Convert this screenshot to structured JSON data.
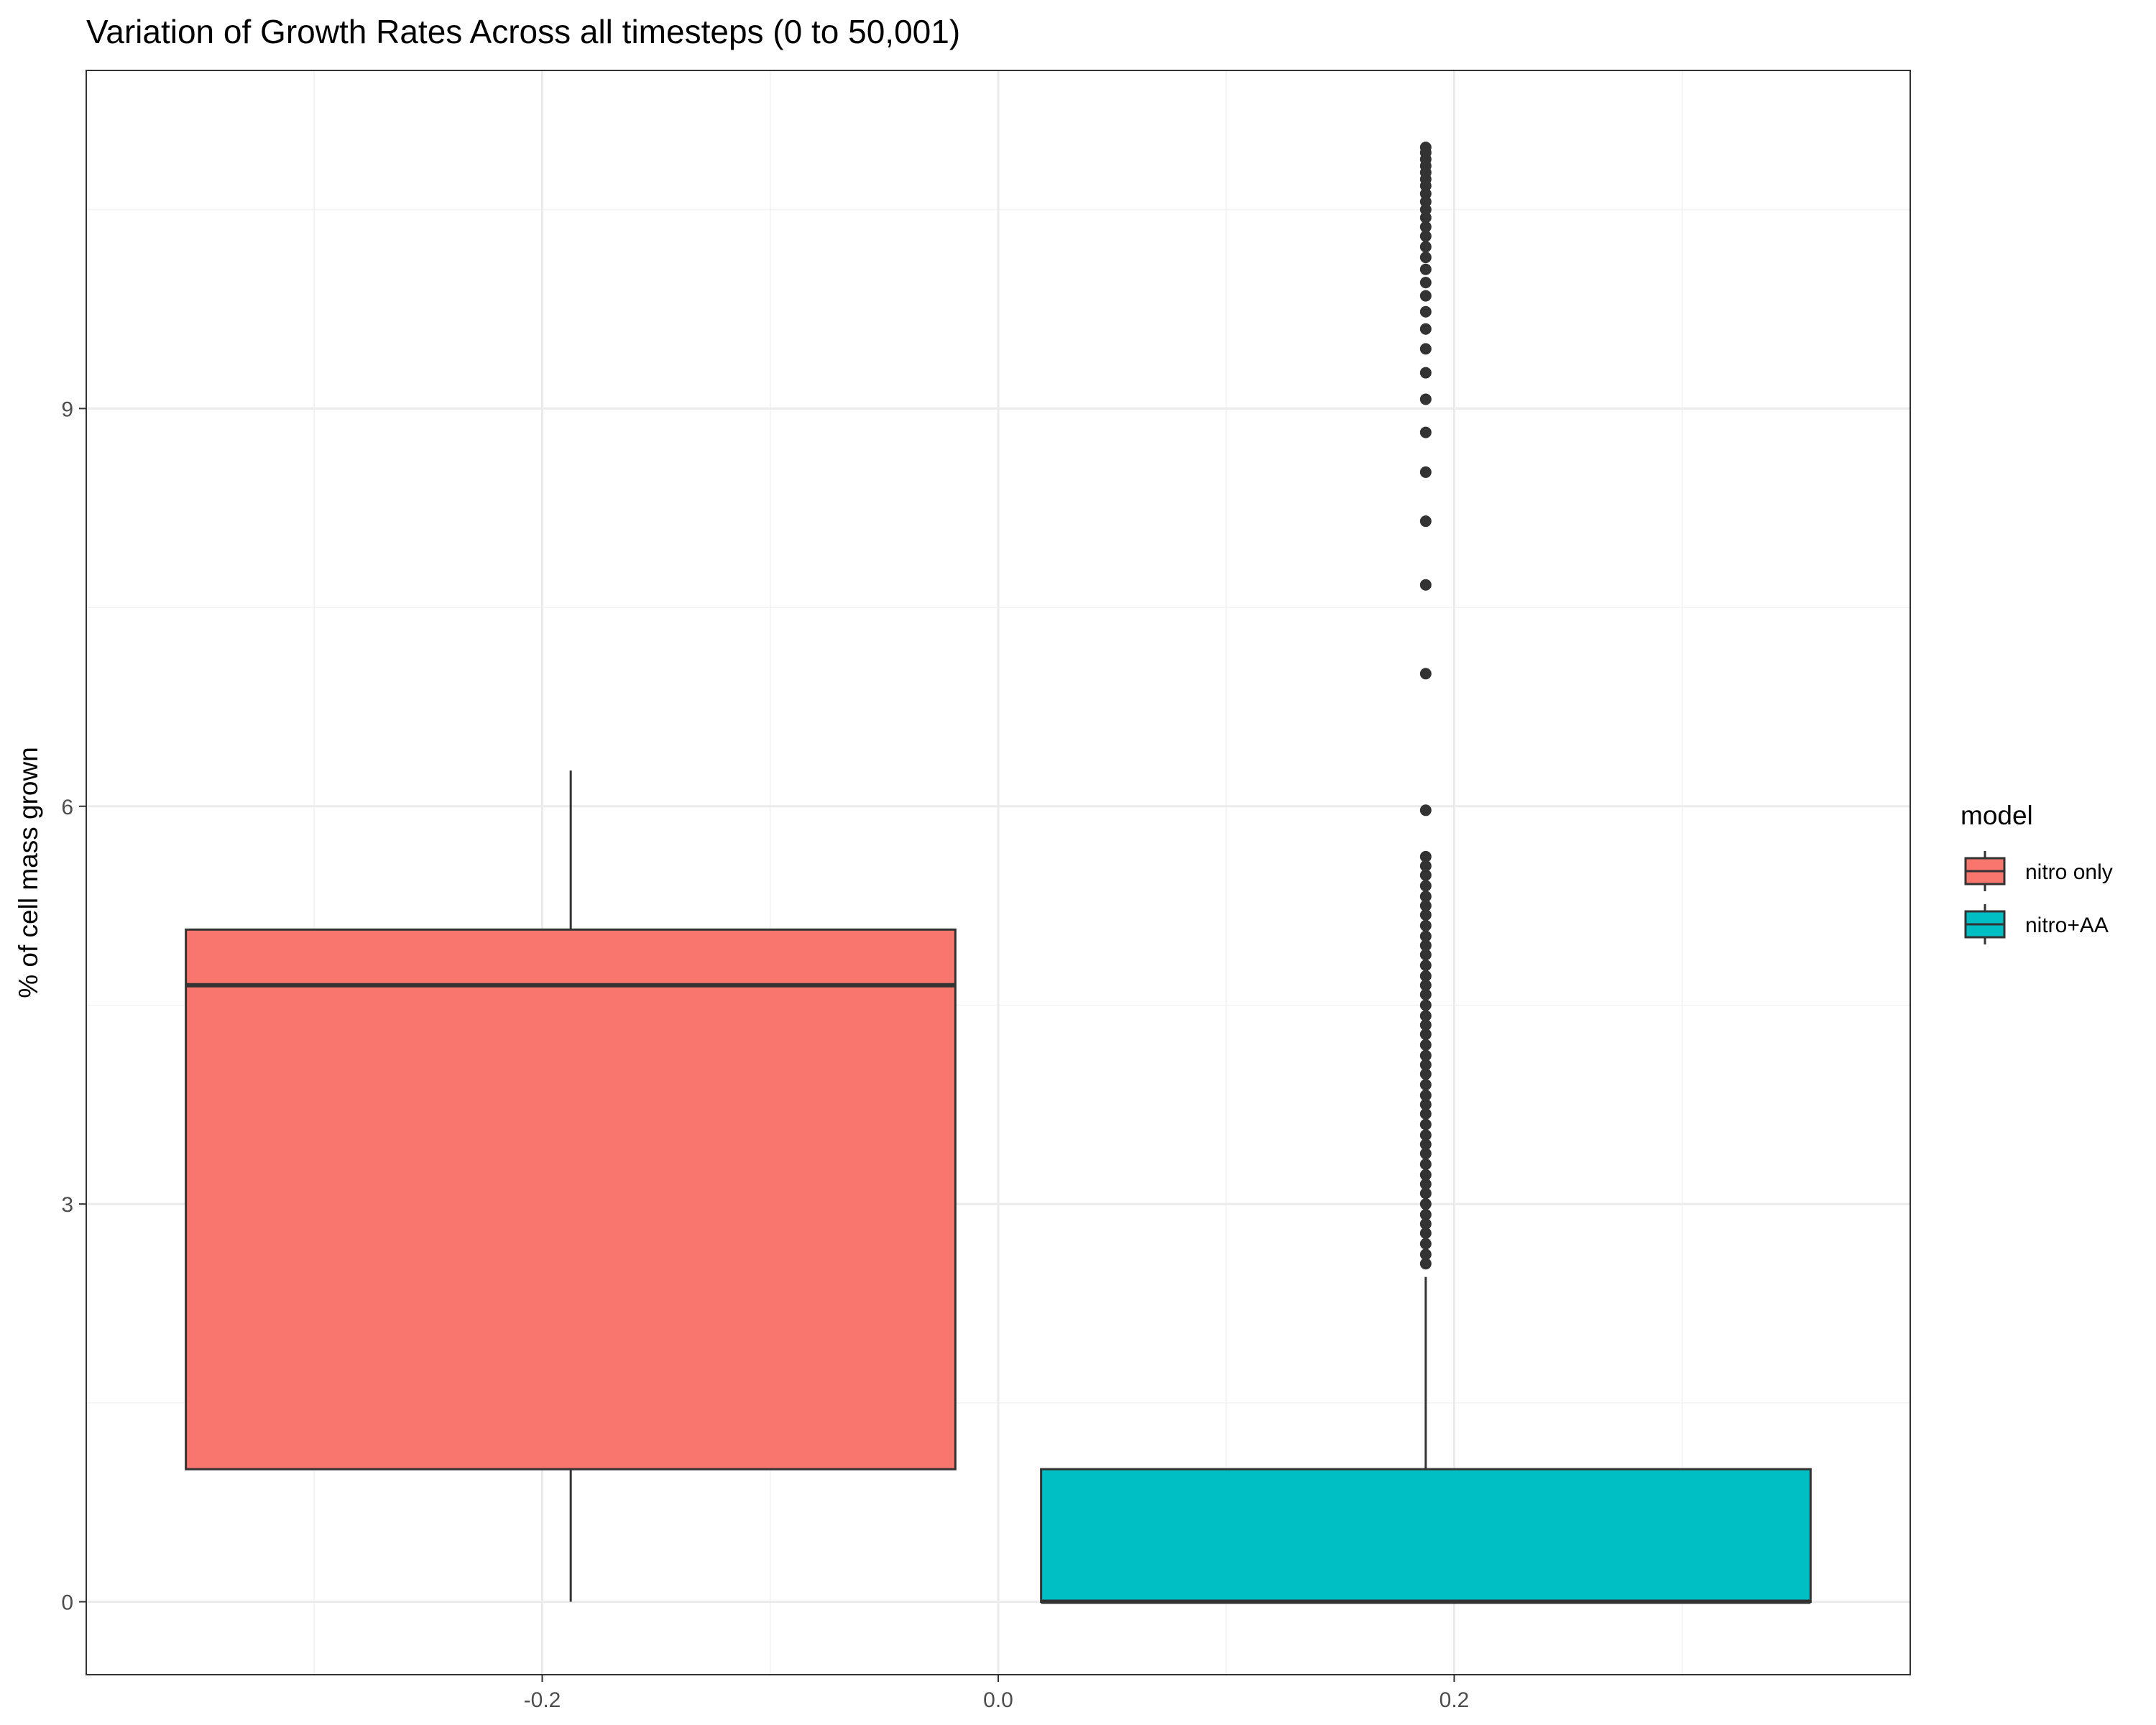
{
  "chart_data": {
    "type": "boxplot",
    "title": "Variation of Growth Rates Across all timesteps (0 to 50,001)",
    "xlabel": "",
    "ylabel": "% of cell mass grown",
    "xlim": [
      -0.4,
      0.4
    ],
    "ylim": [
      -0.55,
      11.55
    ],
    "x_ticks": [
      -0.2,
      0.0,
      0.2
    ],
    "x_tick_labels": [
      "-0.2",
      "0.0",
      "0.2"
    ],
    "y_ticks": [
      0,
      3,
      6,
      9
    ],
    "y_tick_labels": [
      "0",
      "3",
      "6",
      "9"
    ],
    "grid": true,
    "legend": {
      "title": "model",
      "position": "right",
      "entries": [
        "nitro only",
        "nitro+AA"
      ]
    },
    "series": [
      {
        "name": "nitro only",
        "color": "#F8766D",
        "x_center": -0.1875,
        "x_left": -0.3563,
        "x_right": -0.0188,
        "whisker_low": 0.0,
        "q1": 1.0,
        "median": 4.65,
        "q3": 5.07,
        "whisker_high": 6.27,
        "outliers": []
      },
      {
        "name": "nitro+AA",
        "color": "#00BFC4",
        "x_center": 0.1875,
        "x_left": 0.0188,
        "x_right": 0.3563,
        "whisker_low": 0.0,
        "q1": 0.0,
        "median": 0.0,
        "q3": 1.0,
        "whisker_high": 2.45,
        "outliers": [
          2.55,
          2.62,
          2.7,
          2.78,
          2.85,
          2.92,
          3.0,
          3.08,
          3.15,
          3.22,
          3.3,
          3.38,
          3.45,
          3.52,
          3.6,
          3.68,
          3.75,
          3.82,
          3.9,
          3.98,
          4.05,
          4.12,
          4.2,
          4.28,
          4.35,
          4.42,
          4.5,
          4.58,
          4.65,
          4.72,
          4.8,
          4.88,
          4.95,
          5.02,
          5.1,
          5.18,
          5.25,
          5.32,
          5.4,
          5.48,
          5.55,
          5.62,
          5.97,
          7.0,
          7.67,
          8.15,
          8.52,
          8.82,
          9.07,
          9.27,
          9.45,
          9.6,
          9.73,
          9.85,
          9.95,
          10.05,
          10.14,
          10.22,
          10.3,
          10.37,
          10.44,
          10.5,
          10.56,
          10.62,
          10.68,
          10.73,
          10.78,
          10.83,
          10.88,
          10.93,
          10.97
        ]
      }
    ]
  }
}
